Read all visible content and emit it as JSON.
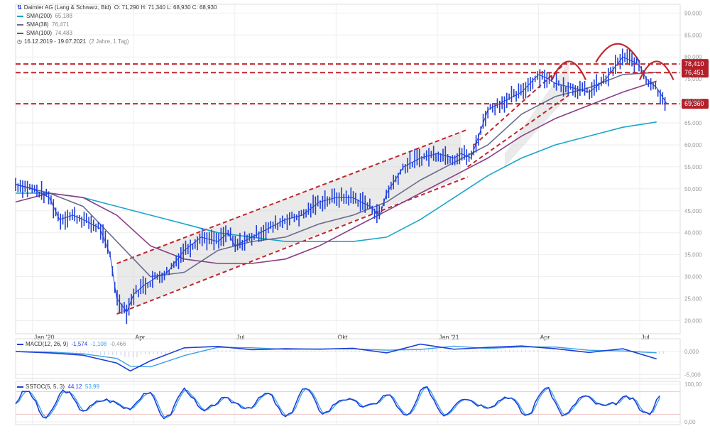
{
  "header": {
    "instrument": "Daimler AG (Lang & Schwarz, Bid)",
    "ohlc": "O: 71,290   H: 71,340   L: 68,930   C: 68,930",
    "sma200_label": "SMA(200)",
    "sma200_value": "65,188",
    "sma38_label": "SMA(38)",
    "sma38_value": "76,471",
    "sma100_label": "SMA(100)",
    "sma100_value": "74,483",
    "period": "16.12.2019 - 19.07.2021",
    "period_note": "(2 Jahre, 1 Tag)"
  },
  "colors": {
    "candles": "#1f3fd6",
    "sma200": "#1aa6c8",
    "sma38": "#6b6b8f",
    "sma100": "#8a3f87",
    "support_resistance": "#c0262d",
    "tag_bg": "#b3202a"
  },
  "price_tags": [
    "78,410",
    "76,451",
    "69,360"
  ],
  "macd": {
    "label": "MACD(12, 26, 9)",
    "v1": "-1,574",
    "v2": "-1,108",
    "v3": "-0,466",
    "ticks": [
      "0,000",
      "-5,000"
    ]
  },
  "stoch": {
    "label": "SSTOC(5, 5, 3)",
    "v1": "44,12",
    "v2": "53,99",
    "ticks": [
      "100,00",
      "0,00"
    ]
  },
  "chart_data": {
    "type": "line",
    "title": "Daimler AG (Lang & Schwarz, Bid)",
    "y_ticks": [
      "90,000",
      "85,000",
      "80,000",
      "75,000",
      "70,000",
      "65,000",
      "60,000",
      "55,000",
      "50,000",
      "45,000",
      "40,000",
      "35,000",
      "30,000",
      "25,000",
      "20,000"
    ],
    "ylim": [
      17,
      92
    ],
    "x_ticks": [
      {
        "label": "Jan '20",
        "m": 0.5
      },
      {
        "label": "Apr",
        "m": 3.5
      },
      {
        "label": "Jul",
        "m": 6.5
      },
      {
        "label": "Okt",
        "m": 9.5
      },
      {
        "label": "Jan '21",
        "m": 12.5
      },
      {
        "label": "Apr",
        "m": 15.5
      },
      {
        "label": "Jul",
        "m": 18.5
      }
    ],
    "xlim": [
      0,
      19.7
    ],
    "grid": true,
    "series": [
      {
        "name": "Daimler AG (Lang & Schwarz, Bid)",
        "m": [
          0,
          0.5,
          1,
          1.3,
          1.7,
          2,
          2.5,
          2.8,
          3.0,
          3.3,
          3.5,
          3.8,
          4.2,
          4.5,
          5.0,
          5.5,
          6.0,
          6.3,
          6.5,
          7.0,
          7.5,
          8.0,
          8.5,
          9.0,
          9.5,
          10.0,
          10.5,
          10.8,
          11.0,
          11.5,
          12.0,
          12.5,
          13.0,
          13.2,
          13.5,
          14.0,
          14.5,
          15.0,
          15.5,
          15.8,
          16.0,
          16.5,
          17.0,
          17.5,
          18.0,
          18.3,
          18.5,
          18.7,
          19.0,
          19.3
        ],
        "v": [
          51,
          50,
          48,
          43,
          44,
          43,
          41,
          35,
          25,
          22,
          26,
          28,
          30,
          31,
          36,
          39,
          38,
          40,
          37,
          39,
          41,
          43,
          44,
          47,
          48,
          48,
          46,
          44,
          49,
          55,
          57,
          58,
          57,
          58,
          57,
          68,
          70,
          72,
          76,
          75,
          74,
          73,
          72,
          75,
          80,
          79,
          78,
          75,
          73,
          69.4
        ]
      },
      {
        "name": "SMA(200)",
        "m": [
          0,
          1,
          2,
          3,
          4,
          5,
          6,
          7,
          8,
          9,
          10,
          11,
          12,
          13,
          14,
          15,
          16,
          17,
          18,
          19
        ],
        "v": [
          49,
          49,
          48,
          46,
          44,
          42,
          40,
          39,
          38,
          38,
          38,
          39,
          43,
          48,
          53,
          57,
          60,
          62,
          64,
          65.2
        ]
      },
      {
        "name": "SMA(38)",
        "m": [
          0,
          1,
          2,
          3,
          4,
          5,
          6,
          7,
          8,
          9,
          10,
          11,
          12,
          13,
          14,
          15,
          15.5,
          16,
          17,
          18,
          19
        ],
        "v": [
          51,
          49,
          46,
          38,
          30,
          31,
          36,
          38,
          39,
          42,
          44,
          47,
          52,
          56,
          60,
          67,
          69,
          71,
          73,
          76,
          76.5
        ]
      },
      {
        "name": "SMA(100)",
        "m": [
          0,
          1,
          2,
          3,
          4,
          5,
          6,
          7,
          8,
          9,
          10,
          11,
          12,
          13,
          14,
          15,
          16,
          17,
          18,
          19
        ],
        "v": [
          47,
          49,
          48,
          44,
          37,
          34,
          33,
          33,
          34,
          37,
          41,
          45,
          49,
          53,
          57,
          62,
          66,
          69,
          72,
          74.5
        ]
      }
    ],
    "horizontal_levels": [
      78.41,
      76.451,
      69.36
    ]
  }
}
